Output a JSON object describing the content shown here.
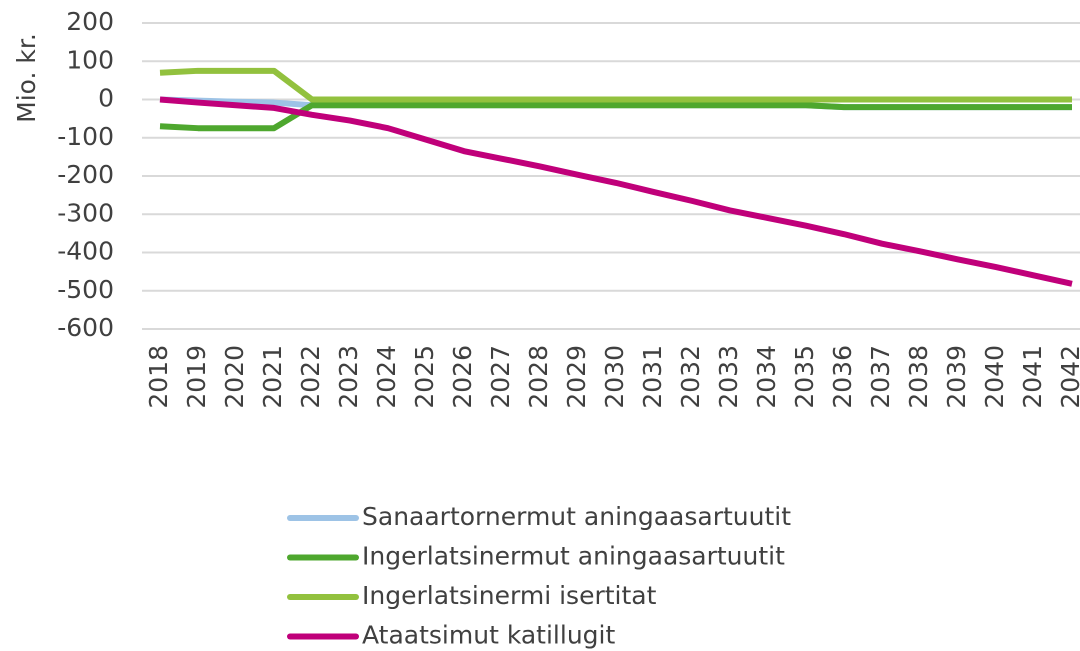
{
  "chart_data": {
    "type": "line",
    "y_label": "Mio. kr.",
    "categories": [
      "2018",
      "2019",
      "2020",
      "2021",
      "2022",
      "2023",
      "2024",
      "2025",
      "2026",
      "2027",
      "2028",
      "2029",
      "2030",
      "2031",
      "2032",
      "2033",
      "2034",
      "2035",
      "2036",
      "2037",
      "2038",
      "2039",
      "2040",
      "2041",
      "2042"
    ],
    "series": [
      {
        "name": "Sanaartornermut aningaasartuutit",
        "color": "#9dc3e6",
        "values": [
          0,
          -3,
          -6,
          -8,
          -15,
          -15,
          -15,
          -15,
          -15,
          -15,
          -15,
          -15,
          -15,
          -15,
          -15,
          -15,
          -15,
          -15,
          -20,
          -20,
          -20,
          -20,
          -20,
          -20,
          -20
        ]
      },
      {
        "name": "Ingerlatsinermut aningaasartuutit",
        "color": "#4ea72e",
        "values": [
          -70,
          -75,
          -75,
          -75,
          -15,
          -15,
          -15,
          -15,
          -15,
          -15,
          -15,
          -15,
          -15,
          -15,
          -15,
          -15,
          -15,
          -15,
          -20,
          -20,
          -20,
          -20,
          -20,
          -20,
          -20
        ]
      },
      {
        "name": "Ingerlatsinermi isertitat",
        "color": "#92c13e",
        "values": [
          70,
          75,
          75,
          75,
          0,
          0,
          0,
          0,
          0,
          0,
          0,
          0,
          0,
          0,
          0,
          0,
          0,
          0,
          0,
          0,
          0,
          0,
          0,
          0,
          0
        ]
      },
      {
        "name": "Ataatsimut katillugit",
        "color": "#c0007a",
        "values": [
          0,
          -8,
          -15,
          -22,
          -40,
          -55,
          -75,
          -105,
          -135,
          -155,
          -175,
          -197,
          -218,
          -242,
          -265,
          -290,
          -310,
          -330,
          -352,
          -377,
          -397,
          -418,
          -438,
          -460,
          -482
        ]
      }
    ],
    "ylim": [
      -600,
      200
    ],
    "yticks": [
      200,
      100,
      0,
      -100,
      -200,
      -300,
      -400,
      -500,
      -600
    ],
    "grid": true,
    "legend": "bottom"
  }
}
